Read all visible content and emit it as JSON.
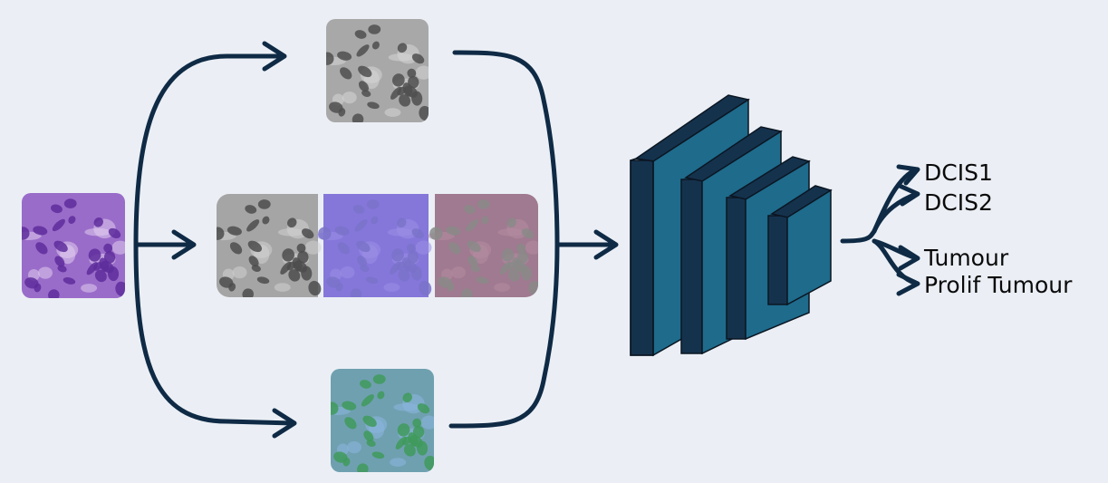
{
  "colors": {
    "background": "#ebeff5",
    "arrow": "#0f2a45",
    "layer_face": "#1e6b8c",
    "layer_side": "#15324d",
    "text": "#0a0a0a"
  },
  "tiles": {
    "original": {
      "base": "#9a6cc9",
      "nucleus": "#5e2d9c",
      "light": "#e0cdef"
    },
    "grayscale_top": {
      "base": "#a8a8a8",
      "nucleus": "#4f4f4f",
      "light": "#d6d6d6"
    },
    "grayscale_mid": {
      "base": "#a5a5a5",
      "nucleus": "#4c4c4c",
      "light": "#d2d2d2"
    },
    "channel_purple": {
      "base": "#8577da",
      "nucleus": "#7a72c9",
      "light": "#9a8fe6"
    },
    "channel_pink": {
      "base": "#a07a90",
      "nucleus": "#8a8a88",
      "light": "#b48ca0"
    },
    "color_jitter": {
      "base": "#6fa0b0",
      "nucleus": "#3f9a5c",
      "light": "#8db6e0"
    }
  },
  "outputs": {
    "class_1": "DCIS1",
    "class_2": "DCIS2",
    "class_3": "Tumour",
    "class_4": "Prolif Tumour"
  }
}
